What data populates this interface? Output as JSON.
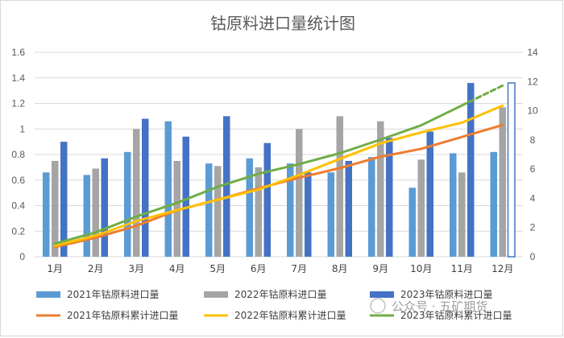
{
  "chart_data": {
    "type": "bar",
    "title": "钴原料进口量统计图",
    "categories": [
      "1月",
      "2月",
      "3月",
      "4月",
      "5月",
      "6月",
      "7月",
      "8月",
      "9月",
      "10月",
      "11月",
      "12月"
    ],
    "y_left": {
      "ticks": [
        "0",
        "0.2",
        "0.4",
        "0.6",
        "0.8",
        "1",
        "1.2",
        "1.4",
        "1.6"
      ],
      "ylim": [
        0,
        1.6
      ]
    },
    "y_right": {
      "ticks": [
        "0",
        "2",
        "4",
        "6",
        "8",
        "10",
        "12",
        "14"
      ],
      "ylim": [
        0,
        14
      ]
    },
    "grid": true,
    "legend_position": "bottom",
    "bar_series": [
      {
        "name": "2021年钴原料进口量",
        "color": "#5b9bd5",
        "axis": "left",
        "values": [
          0.66,
          0.64,
          0.82,
          1.06,
          0.73,
          0.77,
          0.73,
          0.66,
          0.78,
          0.54,
          0.81,
          0.82
        ]
      },
      {
        "name": "2022年钴原料进口量",
        "color": "#a5a5a5",
        "axis": "left",
        "values": [
          0.75,
          0.69,
          1.0,
          0.75,
          0.71,
          0.7,
          1.0,
          1.1,
          1.06,
          0.76,
          0.66,
          1.17
        ]
      },
      {
        "name": "2023年钴原料进口量",
        "color": "#4472c4",
        "axis": "left",
        "values": [
          0.9,
          0.77,
          1.08,
          0.94,
          1.1,
          0.89,
          0.66,
          0.75,
          0.93,
          0.98,
          1.36,
          1.36
        ],
        "note": "12月 shown as unfilled outline bar"
      }
    ],
    "line_series": [
      {
        "name": "2021年钴原料累计进口量",
        "color": "#ed7d31",
        "axis": "right",
        "values": [
          0.66,
          1.3,
          2.12,
          3.18,
          3.91,
          4.68,
          5.41,
          6.07,
          6.85,
          7.39,
          8.2,
          9.02
        ]
      },
      {
        "name": "2022年钴原料累计进口量",
        "color": "#ffc000",
        "axis": "right",
        "values": [
          0.75,
          1.44,
          2.44,
          3.19,
          3.9,
          4.6,
          5.6,
          6.7,
          7.76,
          8.52,
          9.18,
          10.35
        ]
      },
      {
        "name": "2023年钴原料累计进口量",
        "color": "#70ad47",
        "axis": "right",
        "values": [
          0.9,
          1.67,
          2.75,
          3.69,
          4.79,
          5.68,
          6.34,
          7.09,
          8.02,
          9.0,
          10.36,
          11.72
        ],
        "note": "11月→12月 segment drawn dashed"
      }
    ]
  },
  "watermark": {
    "text": "公众号 · 五矿期货"
  }
}
